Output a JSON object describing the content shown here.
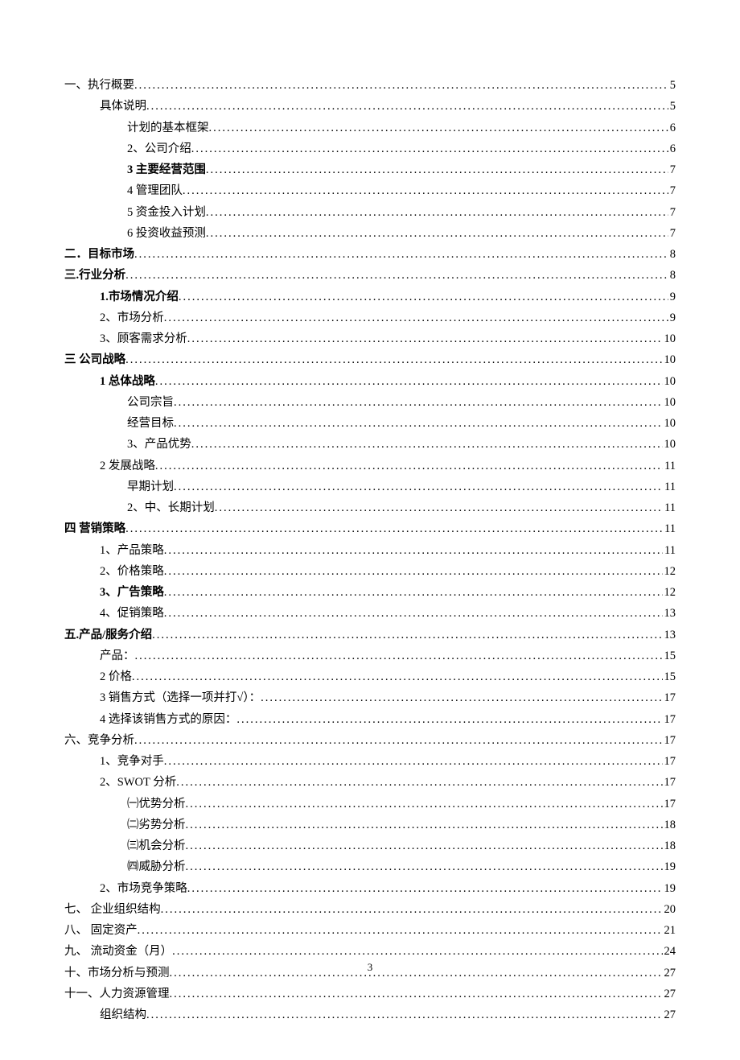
{
  "page_number": "3",
  "toc": [
    {
      "label": "一、执行概要",
      "page": "5",
      "indent": 0,
      "bold": false
    },
    {
      "label": "具体说明",
      "page": "5",
      "indent": 1,
      "bold": false
    },
    {
      "label": "计划的基本框架",
      "page": "6",
      "indent": 2,
      "bold": false
    },
    {
      "label": "2、公司介绍",
      "page": "6",
      "indent": 2,
      "bold": false
    },
    {
      "label": "3 主要经营范围 ",
      "page": "7",
      "indent": 2,
      "bold": true
    },
    {
      "label": "4 管理团队",
      "page": "7",
      "indent": 2,
      "bold": false
    },
    {
      "label": "5 资金投入计划",
      "page": "7",
      "indent": 2,
      "bold": false
    },
    {
      "label": "6 投资收益预测",
      "page": "7",
      "indent": 2,
      "bold": false
    },
    {
      "label": "二．目标市场 ",
      "page": "8",
      "indent": 0,
      "bold": true
    },
    {
      "label": "三.行业分析 ",
      "page": "8",
      "indent": 0,
      "bold": true
    },
    {
      "label": "1.市场情况介绍 ",
      "page": "9",
      "indent": 1,
      "bold": true
    },
    {
      "label": "2、市场分析",
      "page": "9",
      "indent": 1,
      "bold": false
    },
    {
      "label": "3、顾客需求分析",
      "page": "10",
      "indent": 1,
      "bold": false
    },
    {
      "label": "三  公司战略 ",
      "page": "10",
      "indent": 0,
      "bold": true
    },
    {
      "label": "1 总体战略",
      "page": "10",
      "indent": 1,
      "bold": true
    },
    {
      "label": "公司宗旨",
      "page": "10",
      "indent": 2,
      "bold": false
    },
    {
      "label": "经营目标",
      "page": "10",
      "indent": 2,
      "bold": false
    },
    {
      "label": "3、产品优势",
      "page": "10",
      "indent": 2,
      "bold": false
    },
    {
      "label": "2  发展战略",
      "page": "11",
      "indent": 1,
      "bold": false
    },
    {
      "label": "早期计划",
      "page": "11",
      "indent": 2,
      "bold": false
    },
    {
      "label": "2、中、长期计划",
      "page": "11",
      "indent": 2,
      "bold": false
    },
    {
      "label": "四  营销策略 ",
      "page": "11",
      "indent": 0,
      "bold": true
    },
    {
      "label": "1、产品策略",
      "page": "11",
      "indent": 1,
      "bold": false
    },
    {
      "label": "2、价格策略",
      "page": "12",
      "indent": 1,
      "bold": false
    },
    {
      "label": "3、广告策略 ",
      "page": "12",
      "indent": 1,
      "bold": true
    },
    {
      "label": "4、促销策略",
      "page": "13",
      "indent": 1,
      "bold": false
    },
    {
      "label": "五.产品/服务介绍 ",
      "page": "13",
      "indent": 0,
      "bold": true
    },
    {
      "label": "产品：",
      "page": "15",
      "indent": 1,
      "bold": false
    },
    {
      "label": "2 价格",
      "page": "15",
      "indent": 1,
      "bold": false
    },
    {
      "label": "3 销售方式（选择一项并打√）：",
      "page": "17",
      "indent": 1,
      "bold": false
    },
    {
      "label": "4 选择该销售方式的原因：",
      "page": "17",
      "indent": 1,
      "bold": false
    },
    {
      "label": "六、竞争分析",
      "page": "17",
      "indent": 0,
      "bold": false
    },
    {
      "label": "1、竞争对手",
      "page": "17",
      "indent": 1,
      "bold": false
    },
    {
      "label": "2、SWOT 分析 ",
      "page": "17",
      "indent": 1,
      "bold": false
    },
    {
      "label": "㈠优势分析",
      "page": "17",
      "indent": 2,
      "bold": false
    },
    {
      "label": "㈡劣势分析",
      "page": "18",
      "indent": 2,
      "bold": false
    },
    {
      "label": "㈢机会分析",
      "page": "18",
      "indent": 2,
      "bold": false
    },
    {
      "label": "㈣威胁分析",
      "page": "19",
      "indent": 2,
      "bold": false
    },
    {
      "label": "2、市场竞争策略",
      "page": "19",
      "indent": 1,
      "bold": false
    },
    {
      "label": "七、   企业组织结构",
      "page": "20",
      "indent": 0,
      "bold": false
    },
    {
      "label": "八、   固定资产",
      "page": "21",
      "indent": 0,
      "bold": false
    },
    {
      "label": "九、      流动资金（月）",
      "page": "24",
      "indent": 0,
      "bold": false
    },
    {
      "label": "十、市场分析与预测",
      "page": "27",
      "indent": 0,
      "bold": false
    },
    {
      "label": "十一、人力资源管理",
      "page": "27",
      "indent": 0,
      "bold": false
    },
    {
      "label": "组织结构",
      "page": "27",
      "indent": 1,
      "bold": false
    }
  ]
}
